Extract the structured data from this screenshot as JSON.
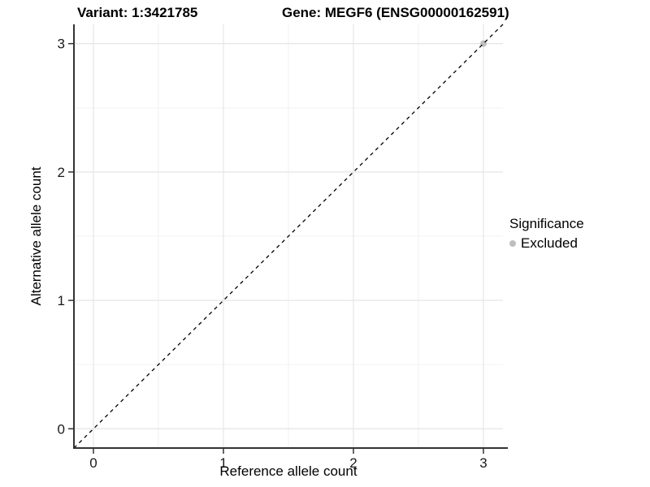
{
  "chart_data": {
    "type": "scatter",
    "title_left": "Variant: 1:3421785",
    "title_right": "Gene: MEGF6 (ENSG00000162591)",
    "xlabel": "Reference allele count",
    "ylabel": "Alternative allele count",
    "xlim": [
      -0.15,
      3.15
    ],
    "ylim": [
      -0.15,
      3.15
    ],
    "xticks": [
      0,
      1,
      2,
      3
    ],
    "yticks": [
      0,
      1,
      2,
      3
    ],
    "minor_step": 0.5,
    "grid": true,
    "series": [
      {
        "name": "Excluded",
        "color": "#bebebe",
        "points": [
          {
            "x": 3,
            "y": 3
          }
        ]
      }
    ],
    "reference_line": {
      "type": "identity",
      "style": "dashed",
      "color": "#000000"
    },
    "legend": {
      "title": "Significance",
      "position": "right",
      "items": [
        {
          "label": "Excluded",
          "color": "#bebebe"
        }
      ]
    },
    "colors": {
      "axis_line": "#333333",
      "tick_mark": "#333333",
      "tick_label": "#1a1a1a",
      "grid_major": "#e5e5e5",
      "grid_minor": "#f2f2f2",
      "panel_background": "#ffffff"
    }
  }
}
